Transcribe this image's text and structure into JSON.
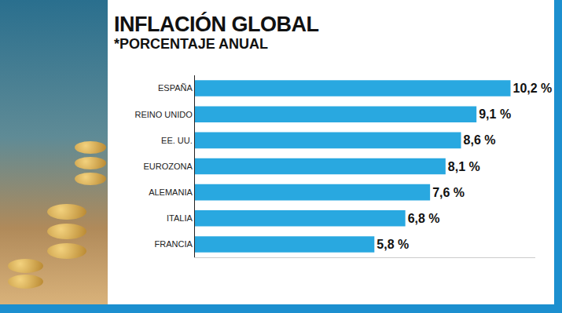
{
  "chart_data": {
    "type": "bar",
    "title": "INFLACIÓN GLOBAL",
    "subtitle": "*PORCENTAJE ANUAL",
    "orientation": "horizontal",
    "categories": [
      "ESPAÑA",
      "REINO UNIDO",
      "EE. UU.",
      "EUROZONA",
      "ALEMANIA",
      "ITALIA",
      "FRANCIA"
    ],
    "values": [
      10.2,
      9.1,
      8.6,
      8.1,
      7.6,
      6.8,
      5.8
    ],
    "value_labels": [
      "10,2 %",
      "9,1 %",
      "8,6 %",
      "8,1 %",
      "7,6 %",
      "6,8 %",
      "5,8 %"
    ],
    "color": "#29a8e0",
    "xlim": [
      0,
      11
    ],
    "data_labels": true,
    "tick_labels": "y",
    "grid": false
  }
}
